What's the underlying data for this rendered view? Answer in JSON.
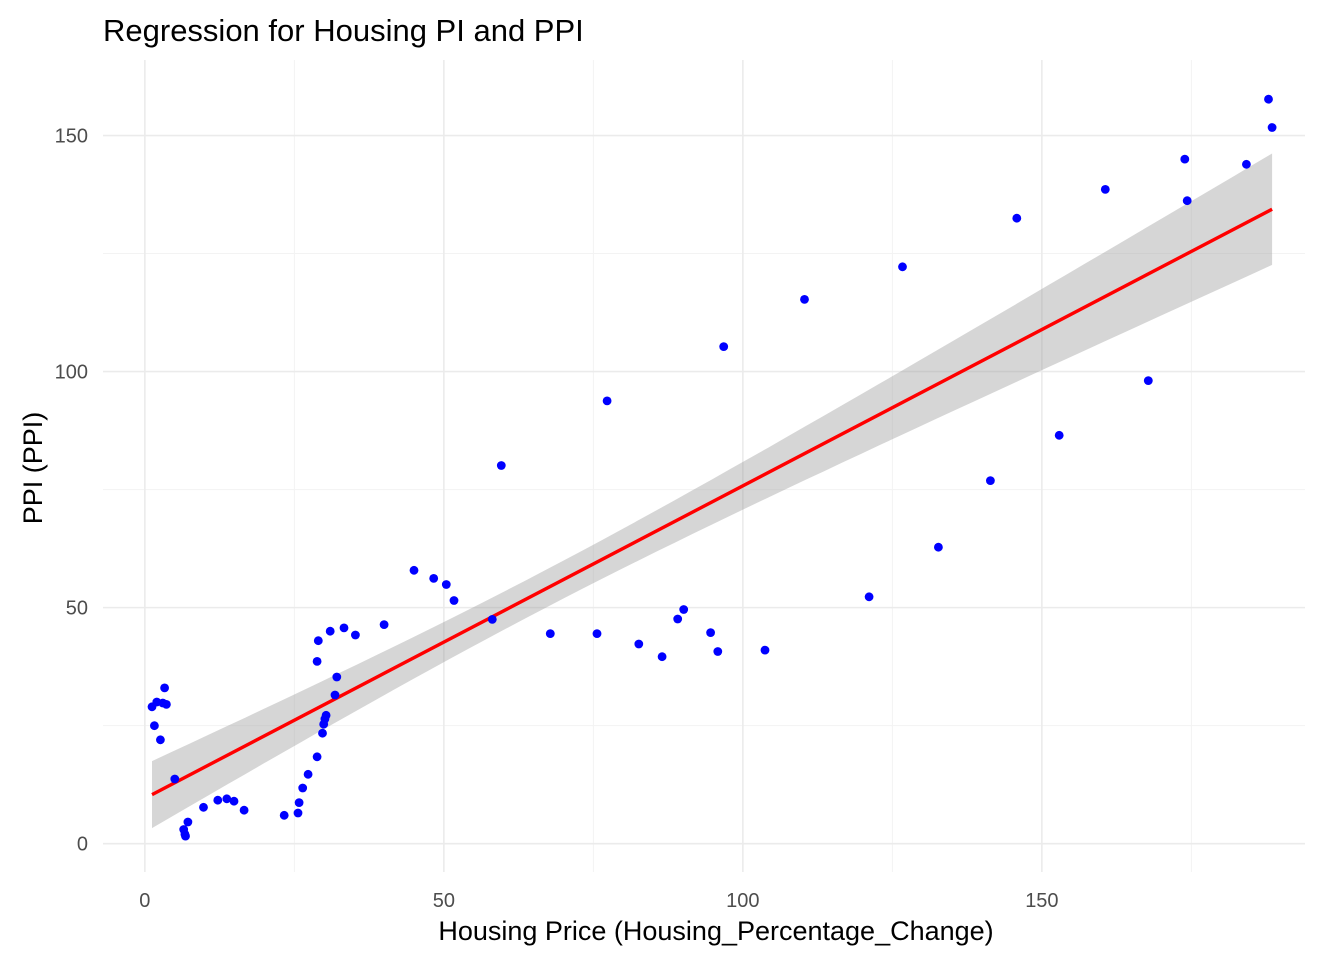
{
  "chart_data": {
    "type": "scatter",
    "title": "Regression for Housing PI and PPI",
    "xlabel": "Housing Price (Housing_Percentage_Change)",
    "ylabel": "PPI (PPI)",
    "xlim": [
      -7,
      194
    ],
    "ylim": [
      -6,
      166
    ],
    "x_ticks": [
      0,
      50,
      100,
      150
    ],
    "y_ticks": [
      0,
      50,
      100,
      150
    ],
    "x_tick_labels": [
      "0",
      "50",
      "100",
      "150"
    ],
    "y_tick_labels": [
      "0",
      "50",
      "100",
      "150"
    ],
    "grid": true,
    "legend": "none",
    "point_color": "#0000ff",
    "line_color": "#ff0000",
    "ribbon_color": "#999999",
    "points": [
      {
        "x": 1.2,
        "y": 29
      },
      {
        "x": 1.6,
        "y": 25
      },
      {
        "x": 2.0,
        "y": 30
      },
      {
        "x": 2.6,
        "y": 22
      },
      {
        "x": 3.0,
        "y": 29.8
      },
      {
        "x": 3.3,
        "y": 33
      },
      {
        "x": 3.6,
        "y": 29.5
      },
      {
        "x": 5.0,
        "y": 13.7
      },
      {
        "x": 6.5,
        "y": 3.0
      },
      {
        "x": 6.7,
        "y": 2.0
      },
      {
        "x": 6.8,
        "y": 1.6
      },
      {
        "x": 7.2,
        "y": 4.6
      },
      {
        "x": 9.8,
        "y": 7.7
      },
      {
        "x": 12.2,
        "y": 9.2
      },
      {
        "x": 13.7,
        "y": 9.5
      },
      {
        "x": 14.9,
        "y": 9.0
      },
      {
        "x": 16.6,
        "y": 7.1
      },
      {
        "x": 23.3,
        "y": 6.0
      },
      {
        "x": 25.6,
        "y": 6.5
      },
      {
        "x": 25.8,
        "y": 8.7
      },
      {
        "x": 26.4,
        "y": 11.8
      },
      {
        "x": 27.3,
        "y": 14.7
      },
      {
        "x": 28.8,
        "y": 18.4
      },
      {
        "x": 28.8,
        "y": 38.6
      },
      {
        "x": 29.0,
        "y": 43.0
      },
      {
        "x": 29.7,
        "y": 23.4
      },
      {
        "x": 29.9,
        "y": 25.3
      },
      {
        "x": 30.1,
        "y": 26.4
      },
      {
        "x": 30.3,
        "y": 27.2
      },
      {
        "x": 31.0,
        "y": 45.0
      },
      {
        "x": 31.8,
        "y": 31.5
      },
      {
        "x": 32.1,
        "y": 35.3
      },
      {
        "x": 33.3,
        "y": 45.7
      },
      {
        "x": 35.2,
        "y": 44.2
      },
      {
        "x": 40.0,
        "y": 46.4
      },
      {
        "x": 45.0,
        "y": 57.9
      },
      {
        "x": 48.3,
        "y": 56.2
      },
      {
        "x": 50.4,
        "y": 54.9
      },
      {
        "x": 51.7,
        "y": 51.5
      },
      {
        "x": 58.1,
        "y": 47.5
      },
      {
        "x": 59.6,
        "y": 80.1
      },
      {
        "x": 67.8,
        "y": 44.5
      },
      {
        "x": 75.6,
        "y": 44.5
      },
      {
        "x": 77.3,
        "y": 93.8
      },
      {
        "x": 82.6,
        "y": 42.3
      },
      {
        "x": 86.5,
        "y": 39.6
      },
      {
        "x": 89.1,
        "y": 47.6
      },
      {
        "x": 90.1,
        "y": 49.6
      },
      {
        "x": 94.6,
        "y": 44.7
      },
      {
        "x": 95.8,
        "y": 40.7
      },
      {
        "x": 96.8,
        "y": 105.3
      },
      {
        "x": 103.7,
        "y": 41.0
      },
      {
        "x": 110.3,
        "y": 115.3
      },
      {
        "x": 121.1,
        "y": 52.3
      },
      {
        "x": 126.7,
        "y": 122.2
      },
      {
        "x": 132.7,
        "y": 62.8
      },
      {
        "x": 141.4,
        "y": 76.9
      },
      {
        "x": 145.8,
        "y": 132.5
      },
      {
        "x": 152.9,
        "y": 86.5
      },
      {
        "x": 160.6,
        "y": 138.6
      },
      {
        "x": 167.8,
        "y": 98.1
      },
      {
        "x": 173.9,
        "y": 145.0
      },
      {
        "x": 174.3,
        "y": 136.2
      },
      {
        "x": 184.2,
        "y": 143.9
      },
      {
        "x": 187.9,
        "y": 157.7
      },
      {
        "x": 188.5,
        "y": 151.7
      }
    ],
    "regression": {
      "x_min": 1.2,
      "x_max": 188.5,
      "intercept": 9.6,
      "slope": 0.662
    },
    "confidence_band": {
      "lower_at_min": 3.0,
      "upper_at_min": 17.2,
      "lower_at_max": 122.8,
      "upper_at_max": 146.4
    }
  }
}
